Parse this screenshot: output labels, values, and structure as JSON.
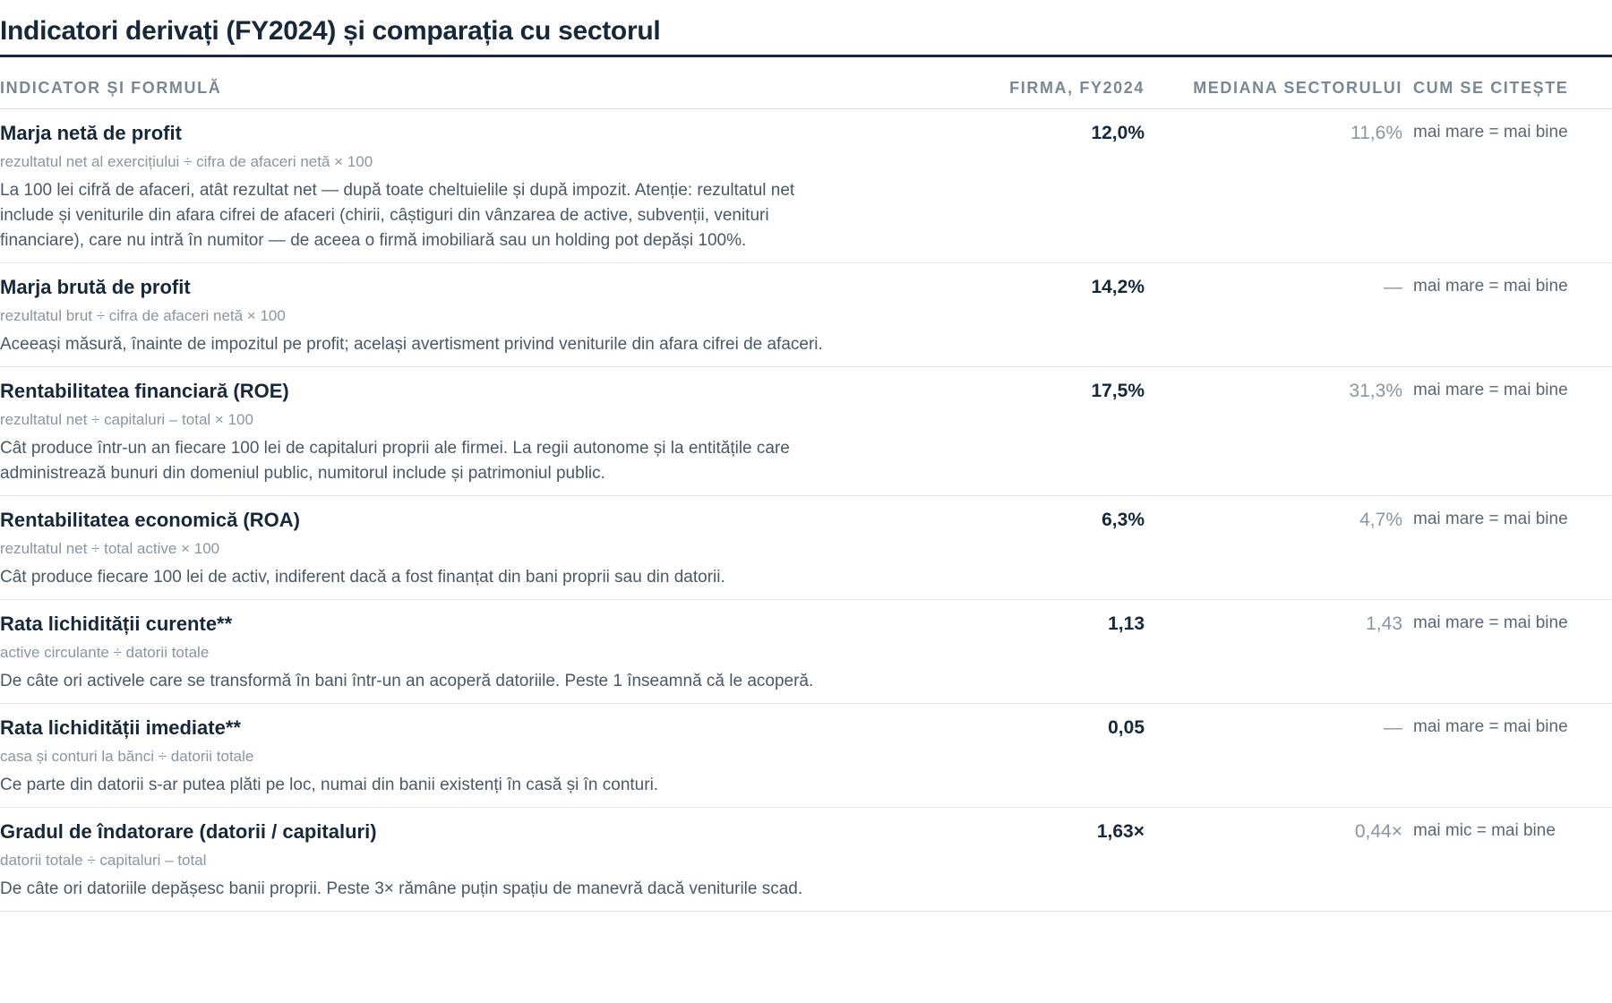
{
  "header": {
    "title": "Indicatori derivați (FY2024) și comparația cu sectorul"
  },
  "table": {
    "columns": [
      "INDICATOR ȘI FORMULĂ",
      "FIRMA, FY2024",
      "MEDIANA SECTORULUI",
      "CUM SE CITEȘTE"
    ],
    "rows": [
      {
        "name": "Marja netă de profit",
        "formula": "rezultatul net al exercițiului ÷ cifra de afaceri netă × 100",
        "description": "La 100 lei cifră de afaceri, atât rezultat net — după toate cheltuielile și după impozit. Atenție: rezultatul net include și veniturile din afara cifrei de afaceri (chirii, câștiguri din vânzarea de active, subvenții, venituri financiare), care nu intră în numitor — de aceea o firmă imobiliară sau un holding pot depăși 100%.",
        "firm": "12,0%",
        "median": "11,6%",
        "reading": "mai mare = mai bine"
      },
      {
        "name": "Marja brută de profit",
        "formula": "rezultatul brut ÷ cifra de afaceri netă × 100",
        "description": "Aceeași măsură, înainte de impozitul pe profit; același avertisment privind veniturile din afara cifrei de afaceri.",
        "firm": "14,2%",
        "median": "—",
        "reading": "mai mare = mai bine"
      },
      {
        "name": "Rentabilitatea financiară (ROE)",
        "formula": "rezultatul net ÷ capitaluri – total × 100",
        "description": "Cât produce într-un an fiecare 100 lei de capitaluri proprii ale firmei. La regii autonome și la entitățile care administrează bunuri din domeniul public, numitorul include și patrimoniul public.",
        "firm": "17,5%",
        "median": "31,3%",
        "reading": "mai mare = mai bine"
      },
      {
        "name": "Rentabilitatea economică (ROA)",
        "formula": "rezultatul net ÷ total active × 100",
        "description": "Cât produce fiecare 100 lei de activ, indiferent dacă a fost finanțat din bani proprii sau din datorii.",
        "firm": "6,3%",
        "median": "4,7%",
        "reading": "mai mare = mai bine"
      },
      {
        "name": "Rata lichidității curente**",
        "formula": "active circulante ÷ datorii totale",
        "description": "De câte ori activele care se transformă în bani într-un an acoperă datoriile. Peste 1 înseamnă că le acoperă.",
        "firm": "1,13",
        "median": "1,43",
        "reading": "mai mare = mai bine"
      },
      {
        "name": "Rata lichidității imediate**",
        "formula": "casa și conturi la bănci ÷ datorii totale",
        "description": "Ce parte din datorii s-ar putea plăti pe loc, numai din banii existenți în casă și în conturi.",
        "firm": "0,05",
        "median": "—",
        "reading": "mai mare = mai bine"
      },
      {
        "name": "Gradul de îndatorare (datorii / capitaluri)",
        "formula": "datorii totale ÷ capitaluri – total",
        "description": "De câte ori datoriile depășesc banii proprii. Peste 3× rămâne puțin spațiu de manevră dacă veniturile scad.",
        "firm": "1,63×",
        "median": "0,44×",
        "reading": "mai mic = mai bine"
      }
    ]
  }
}
